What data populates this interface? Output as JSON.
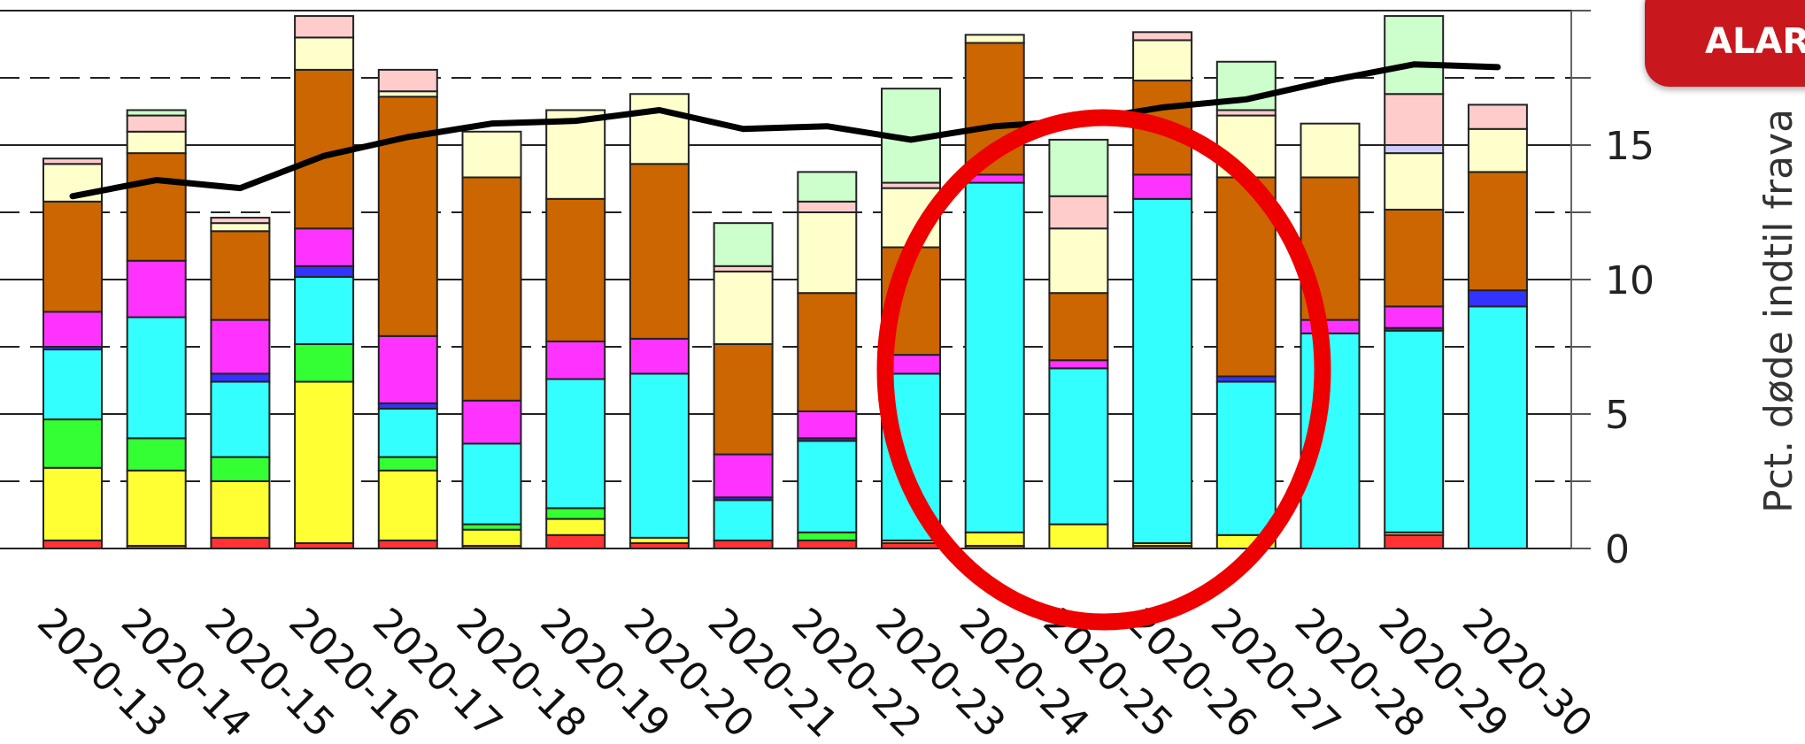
{
  "badge": {
    "text": "ALAR"
  },
  "chart_data": {
    "type": "bar",
    "stacked": true,
    "categories": [
      "2020-13",
      "2020-14",
      "2020-15",
      "2020-16",
      "2020-17",
      "2020-18",
      "2020-19",
      "2020-20",
      "2020-21",
      "2020-22",
      "2020-23",
      "2020-24",
      "2020-25",
      "2020-26",
      "2020-27",
      "2020-28",
      "2020-29",
      "2020-30"
    ],
    "y2label": "Pct. døde indtil frava",
    "y2ticks": [
      0,
      5,
      10,
      15
    ],
    "ylim": [
      0,
      20
    ],
    "grid": true,
    "series": [
      {
        "color": "#ff3333",
        "values": [
          0.3,
          0.1,
          0.4,
          0.2,
          0.3,
          0.1,
          0.5,
          0.2,
          0.3,
          0.3,
          0.2,
          0.1,
          0,
          0.1,
          0,
          0,
          0.5,
          0
        ]
      },
      {
        "color": "#ffff33",
        "values": [
          2.7,
          2.8,
          2.1,
          6.0,
          2.6,
          0.6,
          0.6,
          0.2,
          0,
          0,
          0.1,
          0.5,
          0.9,
          0.1,
          0.5,
          0,
          0.1,
          0
        ]
      },
      {
        "color": "#33ff33",
        "values": [
          1.8,
          1.2,
          0.9,
          1.4,
          0.5,
          0.2,
          0.4,
          0,
          0,
          0.3,
          0,
          0,
          0,
          0,
          0,
          0,
          0,
          0
        ]
      },
      {
        "color": "#33ffff",
        "values": [
          2.6,
          4.5,
          2.8,
          2.5,
          1.8,
          3.0,
          4.8,
          6.1,
          1.5,
          3.4,
          6.2,
          13.0,
          5.8,
          12.8,
          5.7,
          8.0,
          7.5,
          9.0
        ]
      },
      {
        "color": "#3333ff",
        "values": [
          0.1,
          0,
          0.3,
          0.4,
          0.2,
          0,
          0,
          0,
          0.1,
          0.1,
          0,
          0,
          0,
          0,
          0.2,
          0,
          0.1,
          0.6
        ]
      },
      {
        "color": "#ff33ff",
        "values": [
          1.3,
          2.1,
          2.0,
          1.4,
          2.5,
          1.6,
          1.4,
          1.3,
          1.6,
          1.0,
          0.7,
          0.3,
          0.3,
          0.9,
          0,
          0.5,
          0.8,
          0
        ]
      },
      {
        "color": "#cc6600",
        "values": [
          4.1,
          4.0,
          3.3,
          5.9,
          8.9,
          8.3,
          5.3,
          6.5,
          4.1,
          4.4,
          4.0,
          4.9,
          2.5,
          3.5,
          7.4,
          5.3,
          3.6,
          4.4
        ]
      },
      {
        "color": "#ffffcc",
        "values": [
          1.4,
          0.8,
          0.3,
          1.2,
          0.2,
          1.7,
          3.3,
          2.6,
          2.7,
          3.0,
          2.2,
          0.3,
          2.4,
          1.5,
          2.3,
          2.0,
          2.1,
          1.6
        ]
      },
      {
        "color": "#ccccff",
        "values": [
          0,
          0,
          0,
          0,
          0,
          0,
          0,
          0,
          0,
          0,
          0,
          0,
          0,
          0,
          0,
          0,
          0.3,
          0
        ]
      },
      {
        "color": "#ffcccc",
        "values": [
          0.2,
          0.6,
          0.2,
          0.8,
          0.8,
          0,
          0,
          0,
          0.2,
          0.4,
          0.2,
          0,
          1.2,
          0.3,
          0.2,
          0,
          1.9,
          0.9
        ]
      },
      {
        "color": "#ccffcc",
        "values": [
          0,
          0.2,
          0,
          0,
          0,
          0,
          0,
          0,
          1.6,
          1.1,
          3.5,
          0,
          2.1,
          0,
          1.8,
          0,
          2.9,
          0
        ]
      }
    ],
    "line": {
      "color": "#000000",
      "values": [
        13.1,
        13.7,
        13.4,
        14.6,
        15.3,
        15.8,
        15.9,
        16.3,
        15.6,
        15.7,
        15.2,
        15.7,
        15.9,
        16.4,
        16.7,
        17.4,
        18.0,
        17.9
      ]
    }
  }
}
